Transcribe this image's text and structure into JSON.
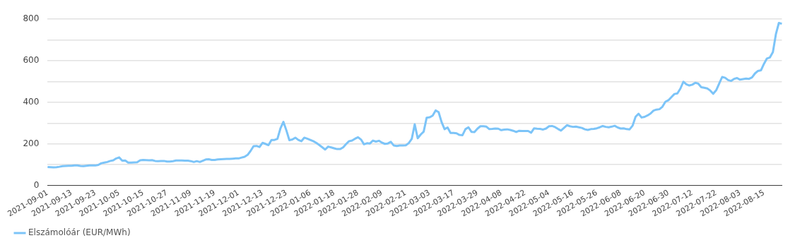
{
  "chart_data": {
    "type": "line",
    "categories": [
      "2021-09-01",
      null,
      null,
      null,
      null,
      null,
      null,
      null,
      "2021-09-13",
      null,
      null,
      null,
      null,
      null,
      null,
      null,
      "2021-09-23",
      null,
      null,
      null,
      null,
      null,
      null,
      null,
      "2021-10-05",
      null,
      null,
      null,
      null,
      null,
      null,
      null,
      "2021-10-15",
      null,
      null,
      null,
      null,
      null,
      null,
      null,
      "2021-10-27",
      null,
      null,
      null,
      null,
      null,
      null,
      null,
      "2021-11-09",
      null,
      null,
      null,
      null,
      null,
      null,
      null,
      "2021-11-19",
      null,
      null,
      null,
      null,
      null,
      null,
      null,
      "2021-12-01",
      null,
      null,
      null,
      null,
      null,
      null,
      null,
      "2021-12-13",
      null,
      null,
      null,
      null,
      null,
      null,
      null,
      "2021-12-23",
      null,
      null,
      null,
      null,
      null,
      null,
      null,
      "2022-01-06",
      null,
      null,
      null,
      null,
      null,
      null,
      null,
      "2022-01-18",
      null,
      null,
      null,
      null,
      null,
      null,
      null,
      "2022-01-28",
      null,
      null,
      null,
      null,
      null,
      null,
      null,
      "2022-02-09",
      null,
      null,
      null,
      null,
      null,
      null,
      null,
      "2022-02-21",
      null,
      null,
      null,
      null,
      null,
      null,
      null,
      "2022-03-03",
      null,
      null,
      null,
      null,
      null,
      null,
      null,
      "2022-03-17",
      null,
      null,
      null,
      null,
      null,
      null,
      null,
      "2022-03-29",
      null,
      null,
      null,
      null,
      null,
      null,
      null,
      "2022-04-08",
      null,
      null,
      null,
      null,
      null,
      null,
      null,
      "2022-04-22",
      null,
      null,
      null,
      null,
      null,
      null,
      null,
      "2022-05-04",
      null,
      null,
      null,
      null,
      null,
      null,
      null,
      "2022-05-16",
      null,
      null,
      null,
      null,
      null,
      null,
      null,
      "2022-05-26",
      null,
      null,
      null,
      null,
      null,
      null,
      null,
      "2022-06-08",
      null,
      null,
      null,
      null,
      null,
      null,
      null,
      "2022-06-20",
      null,
      null,
      null,
      null,
      null,
      null,
      null,
      "2022-06-30",
      null,
      null,
      null,
      null,
      null,
      null,
      null,
      "2022-07-12",
      null,
      null,
      null,
      null,
      null,
      null,
      null,
      "2022-07-22",
      null,
      null,
      null,
      null,
      null,
      null,
      null,
      "2022-08-03",
      null,
      null,
      null,
      null,
      null,
      null,
      null,
      "2022-08-15",
      null,
      null,
      null,
      null,
      null,
      null
    ],
    "series": [
      {
        "name": "Elszámolóár (EUR/MWh)",
        "color": "#7cc4f8",
        "values": [
          89,
          88,
          87,
          88,
          90,
          93,
          94,
          95,
          95,
          96,
          96,
          94,
          93,
          95,
          96,
          96,
          96,
          99,
          107,
          110,
          113,
          118,
          121,
          130,
          135,
          119,
          120,
          110,
          110,
          111,
          112,
          121,
          123,
          122,
          121,
          122,
          118,
          117,
          118,
          118,
          115,
          115,
          117,
          120,
          120,
          120,
          119,
          119,
          117,
          113,
          117,
          113,
          119,
          125,
          126,
          123,
          123,
          125,
          126,
          127,
          128,
          128,
          129,
          130,
          130,
          134,
          138,
          147,
          166,
          189,
          190,
          185,
          205,
          200,
          194,
          219,
          219,
          224,
          274,
          306,
          265,
          218,
          221,
          230,
          219,
          213,
          230,
          225,
          219,
          213,
          205,
          195,
          184,
          173,
          187,
          183,
          179,
          175,
          175,
          183,
          199,
          213,
          216,
          225,
          232,
          221,
          198,
          203,
          202,
          216,
          211,
          215,
          206,
          200,
          202,
          210,
          192,
          190,
          192,
          192,
          193,
          204,
          224,
          294,
          227,
          245,
          259,
          326,
          328,
          336,
          361,
          353,
          305,
          271,
          279,
          253,
          253,
          251,
          243,
          242,
          271,
          280,
          258,
          257,
          273,
          285,
          285,
          283,
          271,
          272,
          274,
          273,
          266,
          269,
          270,
          267,
          263,
          257,
          263,
          262,
          262,
          262,
          254,
          275,
          273,
          272,
          269,
          274,
          285,
          286,
          281,
          272,
          264,
          277,
          290,
          285,
          282,
          283,
          280,
          277,
          270,
          267,
          271,
          272,
          275,
          280,
          286,
          282,
          280,
          283,
          287,
          279,
          274,
          275,
          271,
          270,
          288,
          331,
          345,
          327,
          330,
          337,
          346,
          360,
          365,
          367,
          379,
          403,
          410,
          425,
          440,
          443,
          466,
          499,
          487,
          481,
          485,
          494,
          490,
          473,
          470,
          467,
          457,
          441,
          458,
          490,
          522,
          518,
          507,
          503,
          513,
          517,
          509,
          512,
          514,
          513,
          520,
          539,
          551,
          554,
          585,
          611,
          616,
          642,
          728,
          782,
          778
        ]
      }
    ],
    "ylim": [
      0,
      800
    ],
    "yticks": [
      0,
      {
        "value": 100,
        "label": null
      },
      200,
      {
        "value": 300,
        "label": null
      },
      400,
      {
        "value": 500,
        "label": null
      },
      600,
      {
        "value": 700,
        "label": null
      },
      800
    ],
    "grid": "y",
    "legend": "bottom left",
    "marker": "none",
    "line_style": "solid"
  }
}
